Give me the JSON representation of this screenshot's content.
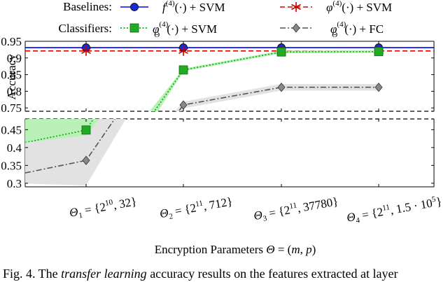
{
  "chart_data": [
    {
      "type": "line",
      "panel": "upper",
      "ylabel": "Accuracy",
      "ylim": [
        0.74,
        0.95
      ],
      "y_ticks": [
        "0.95",
        "0.9",
        "0.85",
        "0.8",
        "0.75"
      ],
      "categories": [
        "Θ1 = {2^10, 32}",
        "Θ2 = {2^11, 712}",
        "Θ3 = {2^11, 37780}",
        "Θ4 = {2^11, 1.5·10^5}"
      ],
      "series": [
        {
          "name": "f(4)(·) + SVM",
          "group": "Baselines",
          "color": "#0000ff",
          "style": "solid",
          "marker": "circle",
          "values": [
            0.931,
            0.931,
            0.931,
            0.931
          ]
        },
        {
          "name": "φ(4)(·) + SVM",
          "group": "Baselines",
          "color": "#e00000",
          "style": "dashed",
          "marker": "star",
          "values": [
            0.921,
            0.921,
            0.921,
            0.921
          ]
        },
        {
          "name": "φΘ(4)(·) + SVM",
          "group": "Classifiers",
          "color": "#00b000",
          "style": "dotted",
          "marker": "square",
          "values": [
            null,
            0.864,
            0.918,
            0.919
          ],
          "band": 0.004
        },
        {
          "name": "φΘ(4)(·) + FC",
          "group": "Classifiers",
          "color": "#555555",
          "style": "dashdot",
          "marker": "diamond",
          "values": [
            null,
            0.759,
            0.812,
            0.812
          ],
          "band": 0.01
        }
      ]
    },
    {
      "type": "line",
      "panel": "lower",
      "ylim": [
        0.29,
        0.48
      ],
      "y_ticks": [
        "0.45",
        "0.4",
        "0.35",
        "0.3"
      ],
      "xlabel": "Encryption Parameters Θ = (m, p)",
      "categories": [
        "Θ1 = {2^10, 32}",
        "Θ2 = {2^11, 712}",
        "Θ3 = {2^11, 37780}",
        "Θ4 = {2^11, 1.5·10^5}"
      ],
      "series": [
        {
          "name": "φΘ(4)(·) + SVM",
          "color": "#00b000",
          "style": "dotted",
          "marker": "square",
          "values": [
            0.449,
            null,
            null,
            null
          ],
          "band": 0.05
        },
        {
          "name": "φΘ(4)(·) + FC",
          "color": "#555555",
          "style": "dashdot",
          "marker": "diamond",
          "values": [
            0.364,
            null,
            null,
            null
          ],
          "band": 0.07
        }
      ]
    }
  ],
  "legend": {
    "baselines_label": "Baselines:",
    "classifiers_label": "Classifiers:",
    "entries": [
      "f(4)(·) + SVM",
      "φ(4)(·) + SVM",
      "φΘ(4)(·) + SVM",
      "φΘ(4)(·) + FC"
    ]
  },
  "caption": {
    "prefix": "Fig. 4.  The ",
    "emph": "transfer learning",
    "rest": " accuracy results on the features extracted at layer"
  }
}
